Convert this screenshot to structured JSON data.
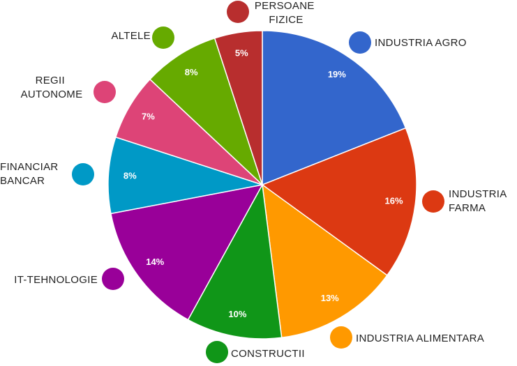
{
  "chart_data": {
    "type": "pie",
    "categories": [
      "INDUSTRIA AGRO",
      "INDUSTRIA FARMA",
      "INDUSTRIA ALIMENTARA",
      "CONSTRUCTII",
      "IT-TEHNOLOGIE",
      "FINANCIAR BANCAR",
      "REGII AUTONOME",
      "ALTELE",
      "PERSOANE FIZICE"
    ],
    "values": [
      19,
      16,
      13,
      10,
      14,
      8,
      7,
      8,
      5
    ],
    "value_labels": [
      "19%",
      "16%",
      "13%",
      "10%",
      "14%",
      "8%",
      "7%",
      "8%",
      "5%"
    ],
    "colors": [
      "#3366cc",
      "#dc3912",
      "#ff9900",
      "#109618",
      "#990099",
      "#0099c6",
      "#dd4477",
      "#66aa00",
      "#b82e2e"
    ]
  }
}
